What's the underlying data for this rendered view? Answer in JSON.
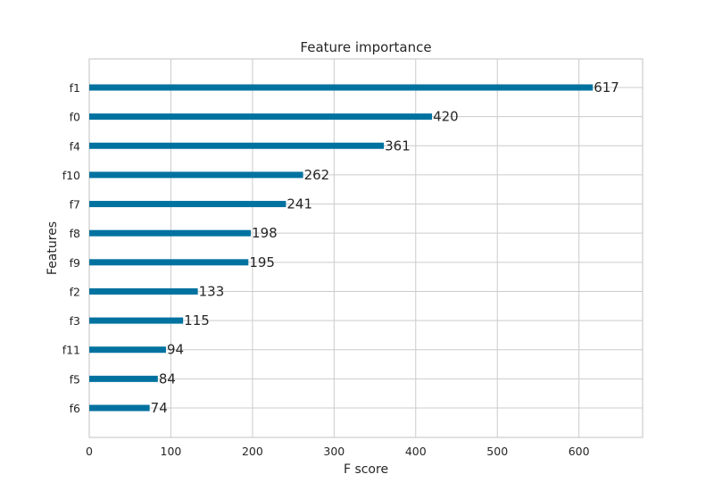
{
  "chart_data": {
    "type": "bar",
    "orientation": "horizontal",
    "title": "Feature importance",
    "xlabel": "F score",
    "ylabel": "Features",
    "categories": [
      "f1",
      "f0",
      "f4",
      "f10",
      "f7",
      "f8",
      "f9",
      "f2",
      "f3",
      "f11",
      "f5",
      "f6"
    ],
    "values": [
      617,
      420,
      361,
      262,
      241,
      198,
      195,
      133,
      115,
      94,
      84,
      74
    ],
    "data_labels": [
      "617",
      "420",
      "361",
      "262",
      "241",
      "198",
      "195",
      "133",
      "115",
      "94",
      "84",
      "74"
    ],
    "xlim": [
      0,
      678
    ],
    "xticks": [
      0,
      100,
      200,
      300,
      400,
      500,
      600
    ],
    "xtick_labels": [
      "0",
      "100",
      "200",
      "300",
      "400",
      "500",
      "600"
    ],
    "grid": true,
    "bar_color": "#0072a0"
  }
}
